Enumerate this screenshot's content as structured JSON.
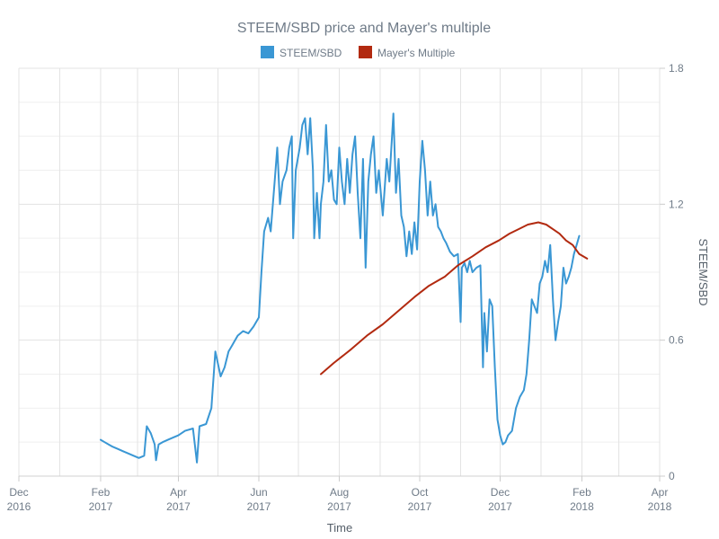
{
  "chart_data": {
    "type": "line",
    "title": "STEEM/SBD price and Mayer's multiple",
    "xlabel": "Time",
    "ylabel": "STEEM/SBD",
    "ylim": [
      0,
      1.8
    ],
    "yticks": [
      {
        "value": 0,
        "label": "0"
      },
      {
        "value": 0.6,
        "label": "0.6"
      },
      {
        "value": 1.2,
        "label": "1.2"
      },
      {
        "value": 1.8,
        "label": "1.8"
      }
    ],
    "xlim": [
      "2016-12-01",
      "2018-04-01"
    ],
    "xticks": [
      {
        "date": "2016-12-01",
        "line1": "Dec",
        "line2": "2016"
      },
      {
        "date": "2017-02-01",
        "line1": "Feb",
        "line2": "2017"
      },
      {
        "date": "2017-04-01",
        "line1": "Apr",
        "line2": "2017"
      },
      {
        "date": "2017-06-01",
        "line1": "Jun",
        "line2": "2017"
      },
      {
        "date": "2017-08-01",
        "line1": "Aug",
        "line2": "2017"
      },
      {
        "date": "2017-10-01",
        "line1": "Oct",
        "line2": "2017"
      },
      {
        "date": "2017-12-01",
        "line1": "Dec",
        "line2": "2017"
      },
      {
        "date": "2018-02-01",
        "line1": "Feb",
        "line2": "2018"
      },
      {
        "date": "2018-04-01",
        "line1": "Apr",
        "line2": "2018"
      }
    ],
    "grid": true,
    "legend_position": "top-center",
    "series": [
      {
        "name": "STEEM/SBD",
        "color": "#3a97d4",
        "points": [
          [
            "2017-02-01",
            0.16
          ],
          [
            "2017-02-04",
            0.15
          ],
          [
            "2017-02-07",
            0.14
          ],
          [
            "2017-02-10",
            0.13
          ],
          [
            "2017-02-14",
            0.12
          ],
          [
            "2017-02-18",
            0.11
          ],
          [
            "2017-02-22",
            0.1
          ],
          [
            "2017-02-26",
            0.09
          ],
          [
            "2017-03-02",
            0.08
          ],
          [
            "2017-03-06",
            0.09
          ],
          [
            "2017-03-08",
            0.22
          ],
          [
            "2017-03-11",
            0.19
          ],
          [
            "2017-03-14",
            0.14
          ],
          [
            "2017-03-15",
            0.07
          ],
          [
            "2017-03-17",
            0.14
          ],
          [
            "2017-03-20",
            0.15
          ],
          [
            "2017-03-24",
            0.16
          ],
          [
            "2017-03-28",
            0.17
          ],
          [
            "2017-04-01",
            0.18
          ],
          [
            "2017-04-06",
            0.2
          ],
          [
            "2017-04-12",
            0.21
          ],
          [
            "2017-04-15",
            0.06
          ],
          [
            "2017-04-17",
            0.22
          ],
          [
            "2017-04-22",
            0.23
          ],
          [
            "2017-04-26",
            0.3
          ],
          [
            "2017-04-29",
            0.55
          ],
          [
            "2017-05-03",
            0.44
          ],
          [
            "2017-05-06",
            0.48
          ],
          [
            "2017-05-09",
            0.55
          ],
          [
            "2017-05-12",
            0.58
          ],
          [
            "2017-05-16",
            0.62
          ],
          [
            "2017-05-20",
            0.64
          ],
          [
            "2017-05-24",
            0.63
          ],
          [
            "2017-05-28",
            0.66
          ],
          [
            "2017-06-01",
            0.7
          ],
          [
            "2017-06-03",
            0.9
          ],
          [
            "2017-06-05",
            1.08
          ],
          [
            "2017-06-08",
            1.14
          ],
          [
            "2017-06-10",
            1.08
          ],
          [
            "2017-06-13",
            1.3
          ],
          [
            "2017-06-15",
            1.45
          ],
          [
            "2017-06-17",
            1.2
          ],
          [
            "2017-06-19",
            1.3
          ],
          [
            "2017-06-22",
            1.35
          ],
          [
            "2017-06-24",
            1.45
          ],
          [
            "2017-06-26",
            1.5
          ],
          [
            "2017-06-27",
            1.05
          ],
          [
            "2017-06-29",
            1.35
          ],
          [
            "2017-07-02",
            1.45
          ],
          [
            "2017-07-04",
            1.55
          ],
          [
            "2017-07-06",
            1.58
          ],
          [
            "2017-07-08",
            1.42
          ],
          [
            "2017-07-10",
            1.58
          ],
          [
            "2017-07-12",
            1.35
          ],
          [
            "2017-07-13",
            1.05
          ],
          [
            "2017-07-15",
            1.25
          ],
          [
            "2017-07-17",
            1.05
          ],
          [
            "2017-07-18",
            1.2
          ],
          [
            "2017-07-20",
            1.3
          ],
          [
            "2017-07-22",
            1.55
          ],
          [
            "2017-07-24",
            1.3
          ],
          [
            "2017-07-26",
            1.35
          ],
          [
            "2017-07-28",
            1.22
          ],
          [
            "2017-07-30",
            1.2
          ],
          [
            "2017-08-01",
            1.45
          ],
          [
            "2017-08-03",
            1.3
          ],
          [
            "2017-08-05",
            1.2
          ],
          [
            "2017-08-07",
            1.4
          ],
          [
            "2017-08-09",
            1.25
          ],
          [
            "2017-08-11",
            1.42
          ],
          [
            "2017-08-13",
            1.5
          ],
          [
            "2017-08-15",
            1.25
          ],
          [
            "2017-08-17",
            1.05
          ],
          [
            "2017-08-19",
            1.4
          ],
          [
            "2017-08-21",
            0.92
          ],
          [
            "2017-08-23",
            1.3
          ],
          [
            "2017-08-25",
            1.42
          ],
          [
            "2017-08-27",
            1.5
          ],
          [
            "2017-08-29",
            1.25
          ],
          [
            "2017-08-31",
            1.35
          ],
          [
            "2017-09-03",
            1.15
          ],
          [
            "2017-09-06",
            1.4
          ],
          [
            "2017-09-08",
            1.3
          ],
          [
            "2017-09-11",
            1.6
          ],
          [
            "2017-09-13",
            1.25
          ],
          [
            "2017-09-15",
            1.4
          ],
          [
            "2017-09-17",
            1.15
          ],
          [
            "2017-09-19",
            1.1
          ],
          [
            "2017-09-21",
            0.97
          ],
          [
            "2017-09-23",
            1.08
          ],
          [
            "2017-09-25",
            0.98
          ],
          [
            "2017-09-27",
            1.12
          ],
          [
            "2017-09-29",
            1.0
          ],
          [
            "2017-10-01",
            1.3
          ],
          [
            "2017-10-03",
            1.48
          ],
          [
            "2017-10-05",
            1.35
          ],
          [
            "2017-10-07",
            1.15
          ],
          [
            "2017-10-09",
            1.3
          ],
          [
            "2017-10-11",
            1.15
          ],
          [
            "2017-10-13",
            1.2
          ],
          [
            "2017-10-15",
            1.1
          ],
          [
            "2017-10-17",
            1.08
          ],
          [
            "2017-10-19",
            1.05
          ],
          [
            "2017-10-21",
            1.03
          ],
          [
            "2017-10-24",
            0.99
          ],
          [
            "2017-10-27",
            0.97
          ],
          [
            "2017-10-30",
            0.98
          ],
          [
            "2017-11-01",
            0.68
          ],
          [
            "2017-11-02",
            0.92
          ],
          [
            "2017-11-04",
            0.94
          ],
          [
            "2017-11-06",
            0.9
          ],
          [
            "2017-11-08",
            0.95
          ],
          [
            "2017-11-10",
            0.9
          ],
          [
            "2017-11-13",
            0.92
          ],
          [
            "2017-11-16",
            0.93
          ],
          [
            "2017-11-18",
            0.48
          ],
          [
            "2017-11-19",
            0.72
          ],
          [
            "2017-11-21",
            0.55
          ],
          [
            "2017-11-23",
            0.78
          ],
          [
            "2017-11-25",
            0.75
          ],
          [
            "2017-11-27",
            0.48
          ],
          [
            "2017-11-29",
            0.25
          ],
          [
            "2017-12-01",
            0.18
          ],
          [
            "2017-12-03",
            0.14
          ],
          [
            "2017-12-05",
            0.15
          ],
          [
            "2017-12-07",
            0.18
          ],
          [
            "2017-12-10",
            0.2
          ],
          [
            "2017-12-13",
            0.3
          ],
          [
            "2017-12-16",
            0.35
          ],
          [
            "2017-12-19",
            0.38
          ],
          [
            "2017-12-21",
            0.45
          ],
          [
            "2017-12-23",
            0.6
          ],
          [
            "2017-12-25",
            0.78
          ],
          [
            "2017-12-27",
            0.75
          ],
          [
            "2017-12-29",
            0.72
          ],
          [
            "2017-12-31",
            0.85
          ],
          [
            "2018-01-02",
            0.88
          ],
          [
            "2018-01-04",
            0.95
          ],
          [
            "2018-01-06",
            0.9
          ],
          [
            "2018-01-08",
            1.02
          ],
          [
            "2018-01-10",
            0.78
          ],
          [
            "2018-01-12",
            0.6
          ],
          [
            "2018-01-14",
            0.68
          ],
          [
            "2018-01-16",
            0.75
          ],
          [
            "2018-01-18",
            0.92
          ],
          [
            "2018-01-20",
            0.85
          ],
          [
            "2018-01-22",
            0.88
          ],
          [
            "2018-01-24",
            0.92
          ],
          [
            "2018-01-26",
            0.98
          ],
          [
            "2018-01-28",
            1.02
          ],
          [
            "2018-01-30",
            1.06
          ]
        ]
      },
      {
        "name": "Mayer's Multiple",
        "color": "#b22a10",
        "points": [
          [
            "2017-07-18",
            0.45
          ],
          [
            "2017-07-28",
            0.5
          ],
          [
            "2017-08-10",
            0.56
          ],
          [
            "2017-08-22",
            0.62
          ],
          [
            "2017-09-03",
            0.67
          ],
          [
            "2017-09-15",
            0.73
          ],
          [
            "2017-09-27",
            0.79
          ],
          [
            "2017-10-08",
            0.84
          ],
          [
            "2017-10-20",
            0.88
          ],
          [
            "2017-10-30",
            0.93
          ],
          [
            "2017-11-10",
            0.97
          ],
          [
            "2017-11-20",
            1.01
          ],
          [
            "2017-11-30",
            1.04
          ],
          [
            "2017-12-08",
            1.07
          ],
          [
            "2017-12-15",
            1.09
          ],
          [
            "2017-12-22",
            1.11
          ],
          [
            "2017-12-30",
            1.12
          ],
          [
            "2018-01-05",
            1.11
          ],
          [
            "2018-01-10",
            1.09
          ],
          [
            "2018-01-15",
            1.07
          ],
          [
            "2018-01-20",
            1.04
          ],
          [
            "2018-01-25",
            1.02
          ],
          [
            "2018-01-30",
            0.98
          ],
          [
            "2018-02-05",
            0.96
          ]
        ]
      }
    ]
  }
}
